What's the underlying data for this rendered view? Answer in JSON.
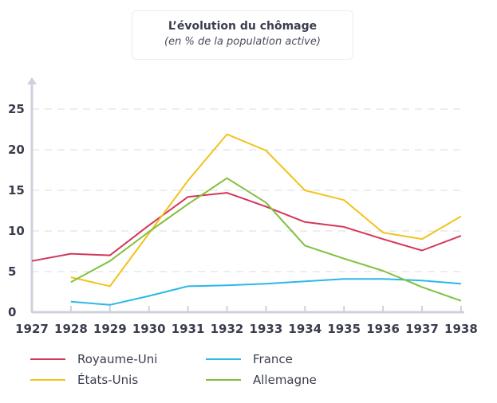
{
  "chart_data": {
    "type": "line",
    "title": "L’évolution du chômage",
    "subtitle": "(en % de la population active)",
    "x": [
      1927,
      1928,
      1929,
      1930,
      1931,
      1932,
      1933,
      1934,
      1935,
      1936,
      1937,
      1938
    ],
    "x_ticks": [
      "1927",
      "1928",
      "1929",
      "1930",
      "1931",
      "1932",
      "1933",
      "1934",
      "1935",
      "1936",
      "1937",
      "1938"
    ],
    "y_ticks": [
      "0",
      "5",
      "10",
      "15",
      "20",
      "25"
    ],
    "ylim": [
      0,
      28
    ],
    "grid": true,
    "legend_position": "bottom-left",
    "series": [
      {
        "name": "Royaume-Uni",
        "color": "#d4365a",
        "x": [
          1927,
          1928,
          1929,
          1930,
          1931,
          1932,
          1933,
          1934,
          1935,
          1936,
          1937,
          1938
        ],
        "values": [
          6.3,
          7.2,
          7.0,
          10.7,
          14.2,
          14.7,
          13.0,
          11.1,
          10.5,
          9.0,
          7.6,
          9.4
        ]
      },
      {
        "name": "États-Unis",
        "color": "#f2c31c",
        "x": [
          1928,
          1929,
          1930,
          1931,
          1932,
          1933,
          1934,
          1935,
          1936,
          1937,
          1938
        ],
        "values": [
          4.3,
          3.2,
          9.7,
          16.2,
          21.9,
          19.9,
          15.0,
          13.8,
          9.8,
          9.0,
          11.8
        ]
      },
      {
        "name": "France",
        "color": "#2bb7e8",
        "x": [
          1928,
          1929,
          1930,
          1931,
          1932,
          1933,
          1934,
          1935,
          1936,
          1937,
          1938
        ],
        "values": [
          1.3,
          0.9,
          2.0,
          3.2,
          3.3,
          3.5,
          3.8,
          4.1,
          4.1,
          3.9,
          3.5
        ]
      },
      {
        "name": "Allemagne",
        "color": "#7fc13c",
        "x": [
          1928,
          1929,
          1930,
          1931,
          1932,
          1933,
          1934,
          1935,
          1936,
          1937,
          1938
        ],
        "values": [
          3.7,
          6.3,
          9.9,
          13.3,
          16.5,
          13.5,
          8.2,
          6.6,
          5.1,
          3.1,
          1.4
        ]
      }
    ]
  }
}
